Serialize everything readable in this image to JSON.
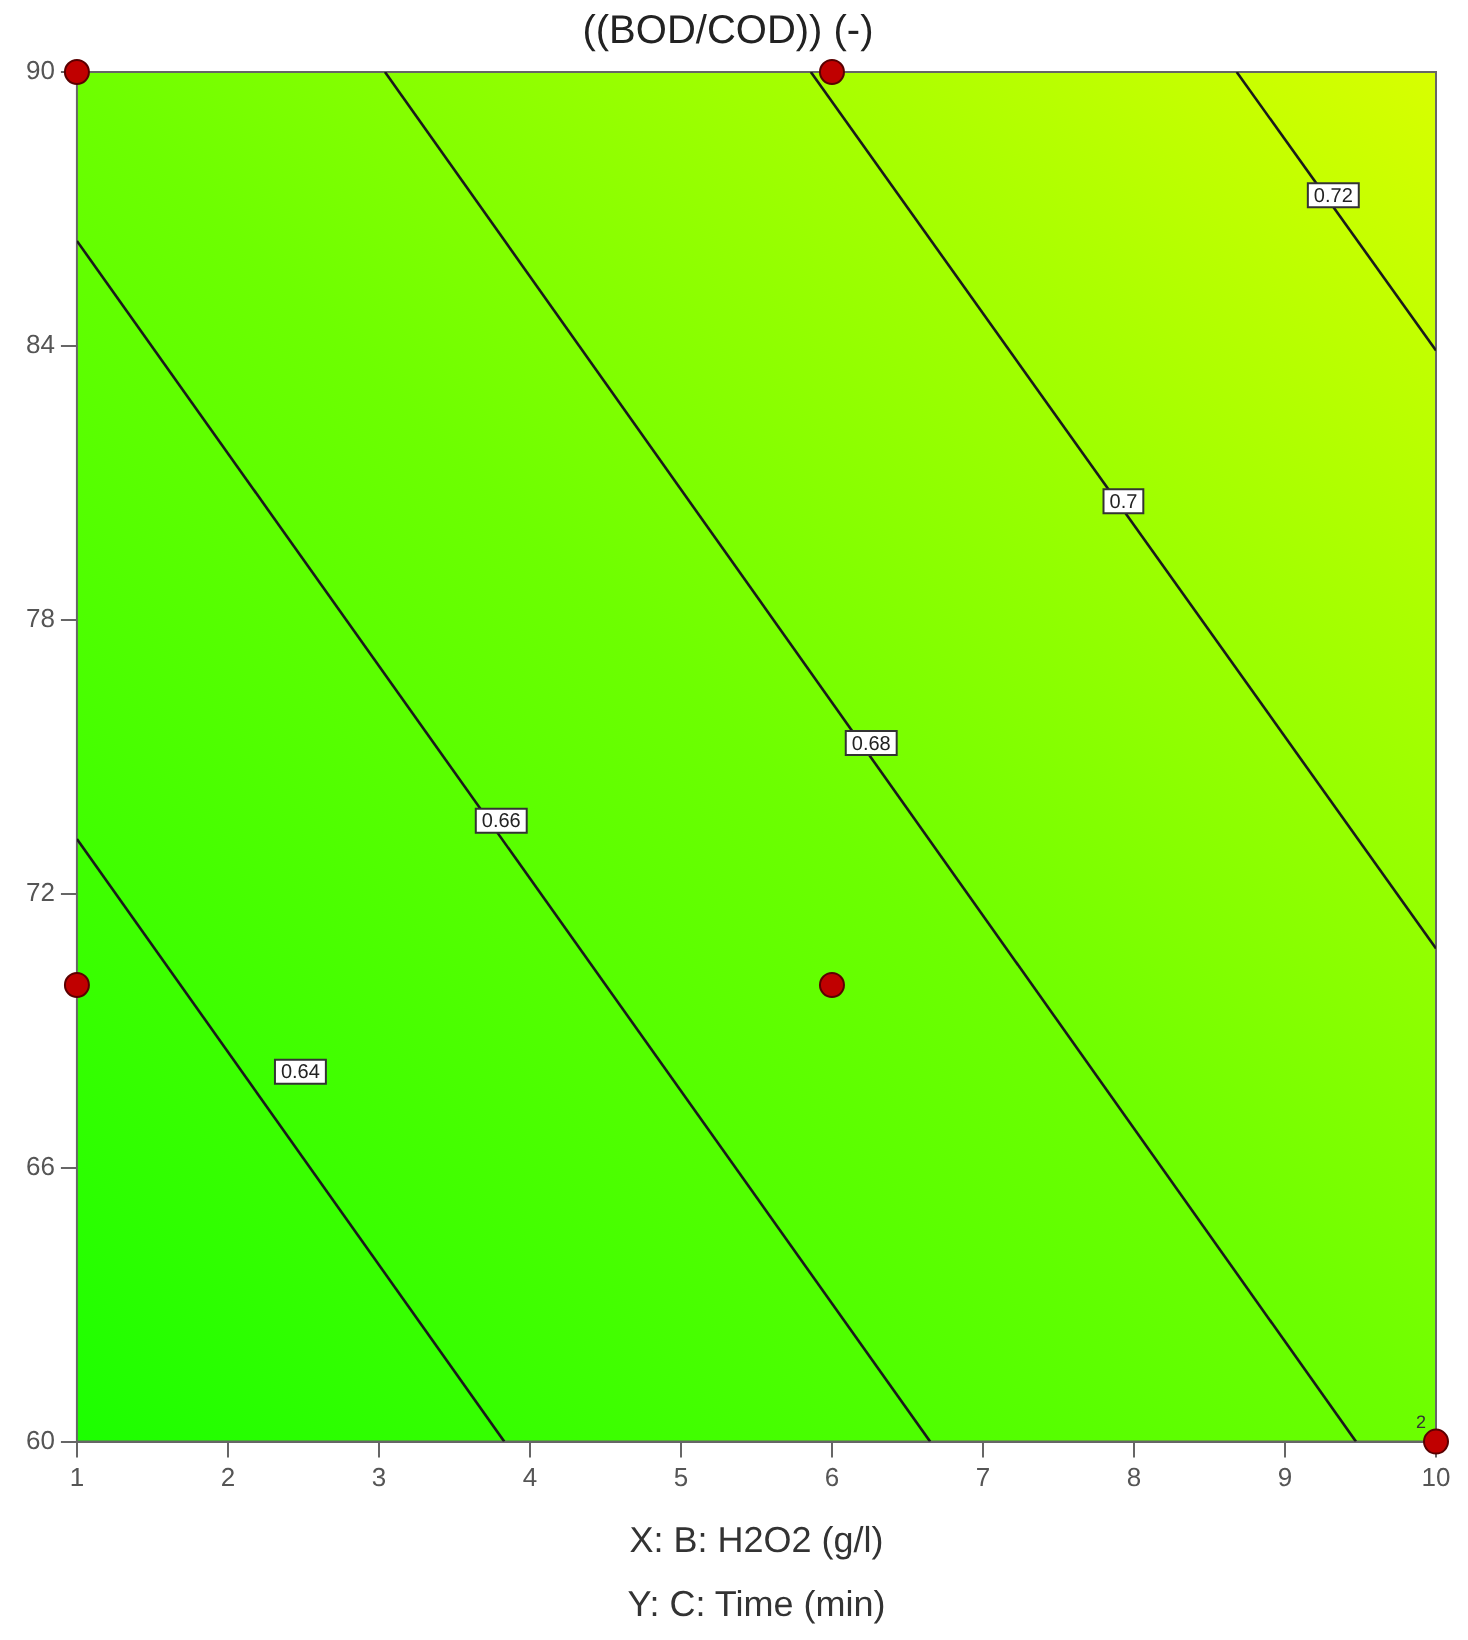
{
  "chart_data": {
    "type": "scatter",
    "title": "((BOD/COD)) (-)",
    "xlabel": "X: B: H2O2 (g/l)",
    "xlim": [
      1,
      10
    ],
    "xticks": [
      1,
      2,
      3,
      4,
      5,
      6,
      7,
      8,
      9,
      10
    ],
    "ylim": [
      60,
      90
    ],
    "yticks": [
      60,
      66,
      72,
      78,
      84,
      90
    ],
    "series": [
      {
        "type": "line",
        "color": "#1a1a1a",
        "x": [
          1,
          3.83
        ],
        "values": [
          73.2,
          60
        ]
      },
      {
        "type": "line",
        "color": "#1a1a1a",
        "x": [
          1,
          6.65
        ],
        "values": [
          86.3,
          60
        ]
      },
      {
        "type": "line",
        "color": "#1a1a1a",
        "x": [
          3.04,
          9.47
        ],
        "values": [
          90,
          60
        ]
      },
      {
        "type": "line",
        "color": "#1a1a1a",
        "x": [
          5.86,
          10
        ],
        "values": [
          90,
          70.8
        ]
      },
      {
        "type": "line",
        "color": "#1a1a1a",
        "x": [
          8.68,
          10
        ],
        "values": [
          90,
          83.9
        ]
      },
      {
        "type": "scatter",
        "color": "#c00000",
        "marker": "circle",
        "x": [
          1,
          6,
          1,
          6,
          10
        ],
        "values": [
          90,
          90,
          70,
          70,
          60
        ]
      }
    ],
    "annotations": [
      {
        "text": "0.64",
        "x": 2.48,
        "y": 68.1
      },
      {
        "text": "0.66",
        "x": 3.81,
        "y": 73.6
      },
      {
        "text": "0.68",
        "x": 6.26,
        "y": 75.3
      },
      {
        "text": "0.7",
        "x": 7.93,
        "y": 80.6
      },
      {
        "text": "0.72",
        "x": 9.32,
        "y": 87.3
      },
      {
        "text": "2",
        "x": 10,
        "y": 60
      },
      "Y: C: Time (min)"
    ]
  }
}
